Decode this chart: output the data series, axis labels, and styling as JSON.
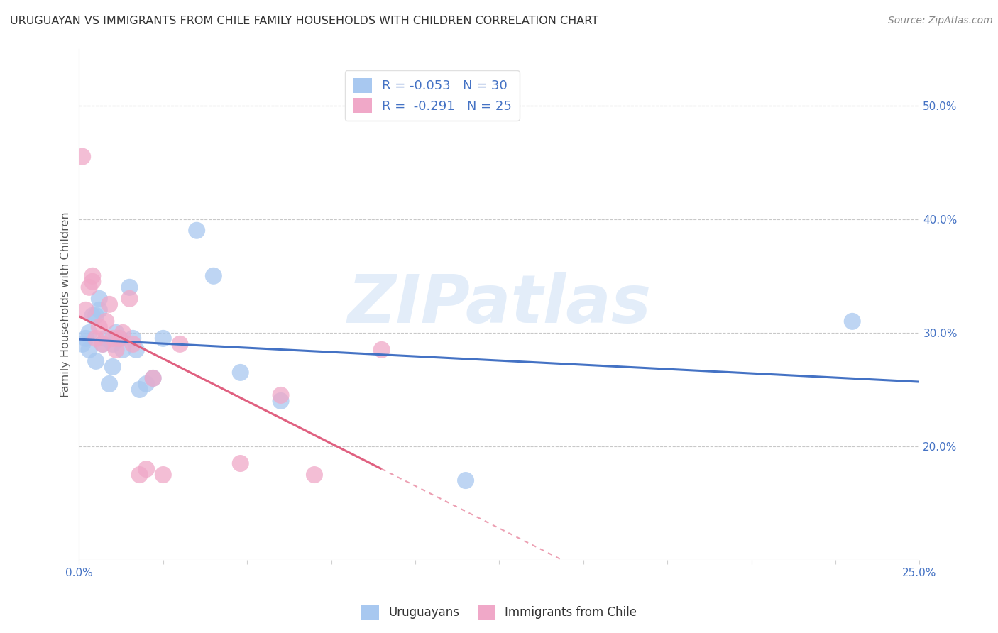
{
  "title": "URUGUAYAN VS IMMIGRANTS FROM CHILE FAMILY HOUSEHOLDS WITH CHILDREN CORRELATION CHART",
  "source": "Source: ZipAtlas.com",
  "ylabel": "Family Households with Children",
  "watermark": "ZIPatlas",
  "legend_uruguayan": "R = -0.053   N = 30",
  "legend_chile": "R =  -0.291   N = 25",
  "legend_label1": "Uruguayans",
  "legend_label2": "Immigrants from Chile",
  "uruguayan_color": "#a8c8f0",
  "chile_color": "#f0a8c8",
  "line_uruguayan_color": "#4472c4",
  "line_chile_color": "#e06080",
  "x_min": 0.0,
  "x_max": 0.25,
  "y_min": 0.1,
  "y_max": 0.55,
  "right_ytick_vals": [
    0.2,
    0.3,
    0.4,
    0.5
  ],
  "uruguayan_x": [
    0.001,
    0.002,
    0.003,
    0.003,
    0.004,
    0.005,
    0.005,
    0.006,
    0.006,
    0.007,
    0.008,
    0.009,
    0.01,
    0.01,
    0.011,
    0.012,
    0.013,
    0.015,
    0.016,
    0.017,
    0.018,
    0.02,
    0.022,
    0.025,
    0.035,
    0.04,
    0.048,
    0.06,
    0.115,
    0.23
  ],
  "uruguayan_y": [
    0.29,
    0.295,
    0.285,
    0.3,
    0.315,
    0.315,
    0.275,
    0.32,
    0.33,
    0.29,
    0.295,
    0.255,
    0.27,
    0.29,
    0.3,
    0.295,
    0.285,
    0.34,
    0.295,
    0.285,
    0.25,
    0.255,
    0.26,
    0.295,
    0.39,
    0.35,
    0.265,
    0.24,
    0.17,
    0.31
  ],
  "chile_x": [
    0.001,
    0.002,
    0.003,
    0.004,
    0.004,
    0.005,
    0.006,
    0.007,
    0.008,
    0.009,
    0.01,
    0.011,
    0.012,
    0.013,
    0.015,
    0.016,
    0.018,
    0.02,
    0.022,
    0.025,
    0.03,
    0.048,
    0.06,
    0.07,
    0.09
  ],
  "chile_y": [
    0.455,
    0.32,
    0.34,
    0.345,
    0.35,
    0.295,
    0.305,
    0.29,
    0.31,
    0.325,
    0.295,
    0.285,
    0.295,
    0.3,
    0.33,
    0.29,
    0.175,
    0.18,
    0.26,
    0.175,
    0.29,
    0.185,
    0.245,
    0.175,
    0.285
  ]
}
